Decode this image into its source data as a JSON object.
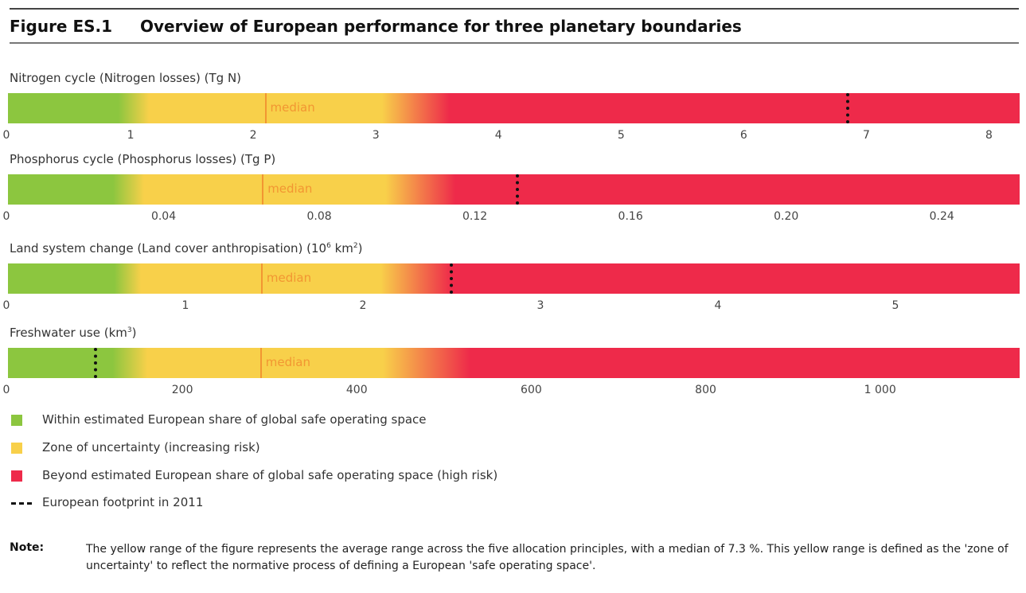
{
  "figure": {
    "number": "Figure ES.1",
    "title": "Overview of European performance for three planetary boundaries"
  },
  "colors": {
    "green": "#8cc63f",
    "yellow": "#f8d04a",
    "red": "#ee2a4a",
    "median": "#f29632",
    "footprint": "#111111"
  },
  "chart_data": [
    {
      "type": "bar",
      "title": "Nitrogen cycle (Nitrogen losses) (Tg N)",
      "xlim": [
        0,
        8.25
      ],
      "ticks": [
        0,
        1,
        2,
        3,
        4,
        5,
        6,
        7,
        8
      ],
      "tick_labels": [
        "0",
        "1",
        "2",
        "3",
        "4",
        "5",
        "6",
        "7",
        "8"
      ],
      "green_until": 0.9,
      "yellow_from": 1.15,
      "yellow_until": 3.05,
      "red_from": 3.6,
      "median": 2.1,
      "median_label": "median",
      "footprint_2011": 6.85
    },
    {
      "type": "bar",
      "title": "Phosphorus cycle (Phosphorus losses) (Tg P)",
      "xlim": [
        0,
        0.26
      ],
      "ticks": [
        0,
        0.04,
        0.08,
        0.12,
        0.16,
        0.2,
        0.24
      ],
      "tick_labels": [
        "0",
        "0.04",
        "0.08",
        "0.12",
        "0.16",
        "0.20",
        "0.24"
      ],
      "green_until": 0.027,
      "yellow_from": 0.035,
      "yellow_until": 0.097,
      "red_from": 0.115,
      "median": 0.0655,
      "median_label": "median",
      "footprint_2011": 0.131
    },
    {
      "type": "bar",
      "title": "Land system change (Land cover anthropisation) (10",
      "title_sup": "6",
      "title_end": " km",
      "title_sup2": "2",
      "title_close": ")",
      "xlim": [
        0,
        5.7
      ],
      "ticks": [
        0,
        1,
        2,
        3,
        4,
        5
      ],
      "tick_labels": [
        "0",
        "1",
        "2",
        "3",
        "4",
        "5"
      ],
      "green_until": 0.6,
      "yellow_from": 0.75,
      "yellow_until": 2.1,
      "red_from": 2.5,
      "median": 1.43,
      "median_label": "median",
      "footprint_2011": 2.5
    },
    {
      "type": "bar",
      "title": "Freshwater use (km",
      "title_sup": "3",
      "title_close": ")",
      "xlim": [
        0,
        1160
      ],
      "ticks": [
        0,
        200,
        400,
        600,
        800,
        1000
      ],
      "tick_labels": [
        "0",
        "200",
        "400",
        "600",
        "800",
        "1 000"
      ],
      "green_until": 120,
      "yellow_from": 160,
      "yellow_until": 430,
      "red_from": 530,
      "median": 290,
      "median_label": "median",
      "footprint_2011": 100
    }
  ],
  "legend": [
    {
      "kind": "swatch",
      "color": "#8cc63f",
      "label": "Within estimated European share of global safe operating space"
    },
    {
      "kind": "swatch",
      "color": "#f8d04a",
      "label": "Zone of uncertainty (increasing risk)"
    },
    {
      "kind": "swatch",
      "color": "#ee2a4a",
      "label": "Beyond estimated European share of global safe operating space (high risk)"
    },
    {
      "kind": "dash",
      "color": "#111111",
      "label": "European footprint in 2011"
    }
  ],
  "note": {
    "label": "Note:",
    "text": "The yellow range of the figure represents the average range across the five allocation principles, with a median of 7.3 %. This yellow range is defined as the 'zone of uncertainty' to reflect the normative process of defining a European 'safe operating space'."
  }
}
